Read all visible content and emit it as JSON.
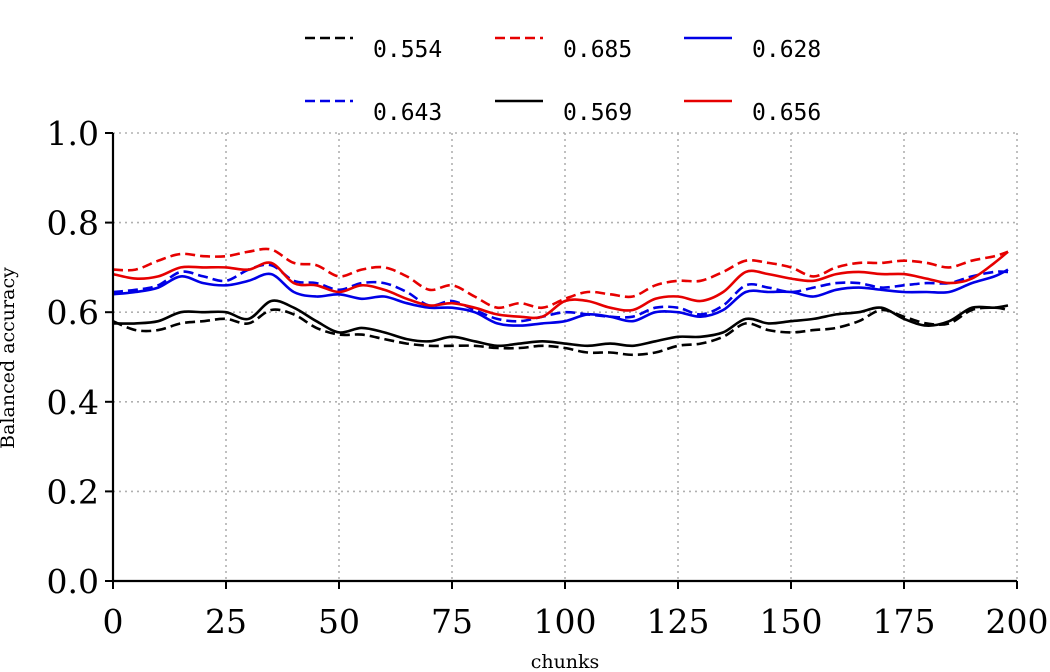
{
  "chart_data": {
    "type": "line",
    "title": "",
    "xlabel": "chunks",
    "ylabel": "Balanced accuracy",
    "xlim": [
      0,
      200
    ],
    "ylim": [
      0.0,
      1.0
    ],
    "xticks": [
      "0",
      "25",
      "50",
      "75",
      "100",
      "125",
      "150",
      "175",
      "200"
    ],
    "yticks": [
      "0.0",
      "0.2",
      "0.4",
      "0.6",
      "0.8",
      "1.0"
    ],
    "grid": true,
    "legend_position": "top",
    "x": [
      0,
      5,
      10,
      15,
      20,
      25,
      30,
      35,
      40,
      45,
      50,
      55,
      60,
      65,
      70,
      75,
      80,
      85,
      90,
      95,
      100,
      105,
      110,
      115,
      120,
      125,
      130,
      135,
      140,
      145,
      150,
      155,
      160,
      165,
      170,
      175,
      180,
      185,
      190,
      195,
      198
    ],
    "series": [
      {
        "name": "0.554",
        "color": "#000000",
        "dash": "dashed",
        "values": [
          0.58,
          0.56,
          0.56,
          0.575,
          0.58,
          0.585,
          0.575,
          0.605,
          0.595,
          0.565,
          0.55,
          0.55,
          0.54,
          0.53,
          0.525,
          0.525,
          0.525,
          0.52,
          0.52,
          0.525,
          0.52,
          0.51,
          0.51,
          0.505,
          0.51,
          0.525,
          0.53,
          0.545,
          0.575,
          0.56,
          0.555,
          0.56,
          0.565,
          0.58,
          0.605,
          0.59,
          0.575,
          0.575,
          0.605,
          0.61,
          0.605
        ]
      },
      {
        "name": "0.685",
        "color": "#e60000",
        "dash": "dashed",
        "values": [
          0.695,
          0.695,
          0.715,
          0.73,
          0.725,
          0.725,
          0.735,
          0.74,
          0.71,
          0.705,
          0.68,
          0.695,
          0.7,
          0.68,
          0.65,
          0.66,
          0.635,
          0.61,
          0.62,
          0.61,
          0.63,
          0.645,
          0.64,
          0.635,
          0.66,
          0.67,
          0.67,
          0.69,
          0.715,
          0.71,
          0.7,
          0.68,
          0.7,
          0.71,
          0.71,
          0.715,
          0.71,
          0.7,
          0.715,
          0.725,
          0.735
        ]
      },
      {
        "name": "0.628",
        "color": "#0000e6",
        "dash": "solid",
        "values": [
          0.64,
          0.645,
          0.655,
          0.68,
          0.665,
          0.66,
          0.67,
          0.685,
          0.645,
          0.635,
          0.64,
          0.63,
          0.635,
          0.62,
          0.61,
          0.61,
          0.6,
          0.575,
          0.57,
          0.575,
          0.58,
          0.595,
          0.59,
          0.58,
          0.6,
          0.6,
          0.59,
          0.605,
          0.645,
          0.645,
          0.645,
          0.635,
          0.65,
          0.655,
          0.65,
          0.645,
          0.645,
          0.645,
          0.665,
          0.68,
          0.695
        ]
      },
      {
        "name": "0.643",
        "color": "#0000e6",
        "dash": "dashed",
        "values": [
          0.645,
          0.65,
          0.66,
          0.69,
          0.68,
          0.67,
          0.695,
          0.705,
          0.67,
          0.665,
          0.65,
          0.665,
          0.665,
          0.645,
          0.615,
          0.625,
          0.605,
          0.585,
          0.58,
          0.59,
          0.6,
          0.595,
          0.59,
          0.59,
          0.61,
          0.61,
          0.595,
          0.615,
          0.66,
          0.655,
          0.645,
          0.655,
          0.665,
          0.665,
          0.655,
          0.66,
          0.665,
          0.665,
          0.68,
          0.69,
          0.69
        ]
      },
      {
        "name": "0.569",
        "color": "#000000",
        "dash": "solid",
        "values": [
          0.575,
          0.575,
          0.58,
          0.6,
          0.6,
          0.6,
          0.585,
          0.625,
          0.61,
          0.58,
          0.555,
          0.565,
          0.555,
          0.54,
          0.535,
          0.545,
          0.535,
          0.525,
          0.53,
          0.535,
          0.53,
          0.525,
          0.53,
          0.525,
          0.535,
          0.545,
          0.545,
          0.555,
          0.585,
          0.575,
          0.58,
          0.585,
          0.595,
          0.6,
          0.61,
          0.585,
          0.57,
          0.58,
          0.61,
          0.61,
          0.615
        ]
      },
      {
        "name": "0.656",
        "color": "#e60000",
        "dash": "solid",
        "values": [
          0.685,
          0.675,
          0.68,
          0.7,
          0.7,
          0.7,
          0.695,
          0.71,
          0.665,
          0.66,
          0.645,
          0.66,
          0.65,
          0.63,
          0.615,
          0.62,
          0.61,
          0.595,
          0.59,
          0.59,
          0.625,
          0.625,
          0.61,
          0.605,
          0.63,
          0.635,
          0.625,
          0.645,
          0.69,
          0.685,
          0.675,
          0.67,
          0.685,
          0.69,
          0.685,
          0.685,
          0.675,
          0.665,
          0.675,
          0.71,
          0.735
        ]
      }
    ]
  }
}
